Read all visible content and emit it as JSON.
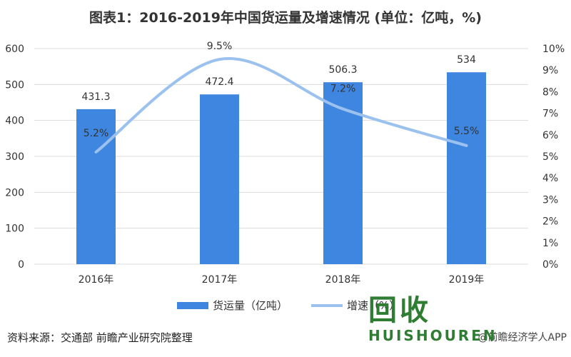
{
  "header": {
    "title": "图表1：2016-2019年中国货运量及增速情况 (单位：亿吨，%)"
  },
  "chart_data": {
    "type": "bar",
    "categories": [
      "2016年",
      "2017年",
      "2018年",
      "2019年"
    ],
    "series": [
      {
        "name": "货运量（亿吨）",
        "type": "bar",
        "axis": "left",
        "values": [
          431.3,
          472.4,
          506.3,
          534
        ],
        "labels": [
          "431.3",
          "472.4",
          "506.3",
          "534"
        ]
      },
      {
        "name": "增速（%）",
        "type": "line",
        "axis": "right",
        "values": [
          5.2,
          9.5,
          7.2,
          5.5
        ],
        "labels": [
          "5.2%",
          "9.5%",
          "7.2%",
          "5.5%"
        ]
      }
    ],
    "y_left": {
      "min": 0,
      "max": 600,
      "ticks": [
        "0",
        "100",
        "200",
        "300",
        "400",
        "500",
        "600"
      ]
    },
    "y_right": {
      "min": 0,
      "max": 10,
      "ticks": [
        "0%",
        "1%",
        "2%",
        "3%",
        "4%",
        "5%",
        "6%",
        "7%",
        "8%",
        "9%",
        "10%"
      ]
    },
    "grid": true,
    "legend": "bottom",
    "colors": {
      "bar": "#3f86e0",
      "line": "#9bc1ee",
      "grid": "#dcdcdc"
    }
  },
  "footer": {
    "source": "资料来源：交通部 前瞻产业研究院整理",
    "credit": "@前瞻经济学人APP",
    "brand_cn": "回收",
    "brand_en": "HUISHOUREN"
  }
}
